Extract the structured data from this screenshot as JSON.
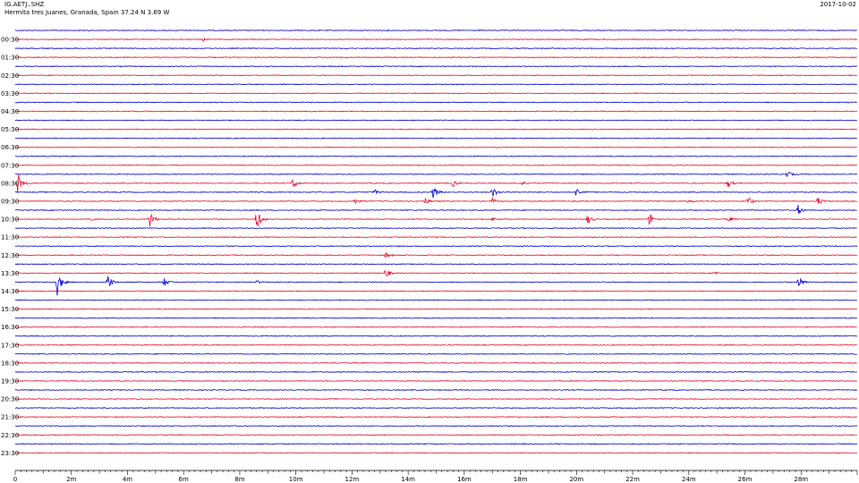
{
  "header": {
    "station": "IG.AETJ..SHZ",
    "location": "Hermita tres Juanes, Granada, Spain  37.24 N 3.69 W",
    "date": "2017-10-02"
  },
  "colors": {
    "odd_trace": "#0000cc",
    "even_trace": "#dd1133",
    "axis": "#000000"
  },
  "chart_data": {
    "type": "line",
    "title": "IG.AETJ..SHZ",
    "xlabel": "",
    "ylabel": "",
    "xlim_minutes": [
      0,
      30
    ],
    "x_tick_labels": [
      "0",
      "2m",
      "4m",
      "6m",
      "8m",
      "10m",
      "12m",
      "14m",
      "16m",
      "18m",
      "20m",
      "22m",
      "24m",
      "26m",
      "28m"
    ],
    "rows_per_hour": 2,
    "row_count": 48,
    "y_labels": [
      "00:30",
      "01:30",
      "02:30",
      "03:30",
      "04:30",
      "05:30",
      "06:30",
      "07:30",
      "08:30",
      "09:30",
      "10:30",
      "11:30",
      "12:30",
      "13:30",
      "14:30",
      "15:30",
      "16:30",
      "17:30",
      "18:30",
      "19:30",
      "20:30",
      "21:30",
      "22:30",
      "23:30"
    ],
    "events": [
      {
        "row": 1,
        "minute": 6.7,
        "amplitude": 2
      },
      {
        "row": 16,
        "minute": 27.5,
        "amplitude": 4
      },
      {
        "row": 17,
        "minute": 0.1,
        "amplitude": 12
      },
      {
        "row": 17,
        "minute": 9.9,
        "amplitude": 7
      },
      {
        "row": 17,
        "minute": 15.6,
        "amplitude": 4
      },
      {
        "row": 17,
        "minute": 18.0,
        "amplitude": 3
      },
      {
        "row": 17,
        "minute": 25.4,
        "amplitude": 5
      },
      {
        "row": 17,
        "minute": 30.0,
        "amplitude": 6
      },
      {
        "row": 18,
        "minute": 12.8,
        "amplitude": 3
      },
      {
        "row": 18,
        "minute": 14.9,
        "amplitude": 8
      },
      {
        "row": 18,
        "minute": 17.0,
        "amplitude": 7
      },
      {
        "row": 18,
        "minute": 20.0,
        "amplitude": 6
      },
      {
        "row": 19,
        "minute": 12.1,
        "amplitude": 3
      },
      {
        "row": 19,
        "minute": 14.6,
        "amplitude": 4
      },
      {
        "row": 19,
        "minute": 17.0,
        "amplitude": 4
      },
      {
        "row": 19,
        "minute": 24.0,
        "amplitude": 2
      },
      {
        "row": 19,
        "minute": 26.1,
        "amplitude": 6
      },
      {
        "row": 19,
        "minute": 28.6,
        "amplitude": 5
      },
      {
        "row": 20,
        "minute": 27.9,
        "amplitude": 6
      },
      {
        "row": 21,
        "minute": 2.6,
        "amplitude": 3
      },
      {
        "row": 21,
        "minute": 4.8,
        "amplitude": 10
      },
      {
        "row": 21,
        "minute": 8.6,
        "amplitude": 13
      },
      {
        "row": 21,
        "minute": 17.0,
        "amplitude": 2
      },
      {
        "row": 21,
        "minute": 20.4,
        "amplitude": 6
      },
      {
        "row": 21,
        "minute": 22.6,
        "amplitude": 8
      },
      {
        "row": 21,
        "minute": 25.4,
        "amplitude": 3
      },
      {
        "row": 25,
        "minute": 13.2,
        "amplitude": 4
      },
      {
        "row": 27,
        "minute": 13.2,
        "amplitude": 6
      },
      {
        "row": 27,
        "minute": 24.9,
        "amplitude": 2
      },
      {
        "row": 28,
        "minute": 1.5,
        "amplitude": 16
      },
      {
        "row": 28,
        "minute": 3.3,
        "amplitude": 9
      },
      {
        "row": 28,
        "minute": 5.3,
        "amplitude": 5
      },
      {
        "row": 28,
        "minute": 8.6,
        "amplitude": 2
      },
      {
        "row": 28,
        "minute": 27.9,
        "amplitude": 9
      }
    ]
  }
}
